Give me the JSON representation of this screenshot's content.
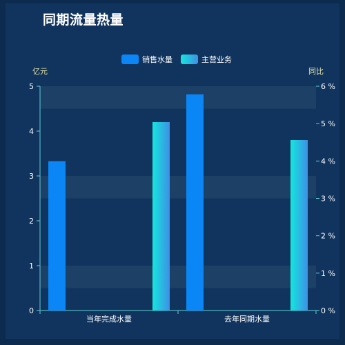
{
  "chart_data": {
    "type": "bar",
    "title": "同期流量热量",
    "categories": [
      "当年完成水量",
      "去年同期水量"
    ],
    "series": [
      {
        "name": "销售水量",
        "axis": "left",
        "values": [
          3.33,
          4.82
        ],
        "color": "#0a86f6"
      },
      {
        "name": "主营业务",
        "axis": "right",
        "values": [
          5.04,
          4.56
        ],
        "color_from": "#14e6de",
        "color_to": "#3e90e6"
      }
    ],
    "left_axis": {
      "label": "亿元",
      "ylim": [
        0,
        5
      ],
      "ticks": [
        "0",
        "1",
        "2",
        "3",
        "4",
        "5"
      ]
    },
    "right_axis": {
      "label": "同比",
      "ylim": [
        0,
        6
      ],
      "ticks": [
        "0 %",
        "1 %",
        "2 %",
        "3 %",
        "4 %",
        "5 %",
        "6 %"
      ]
    },
    "legend_position": "top-center",
    "grid": "alternating horizontal bands"
  }
}
